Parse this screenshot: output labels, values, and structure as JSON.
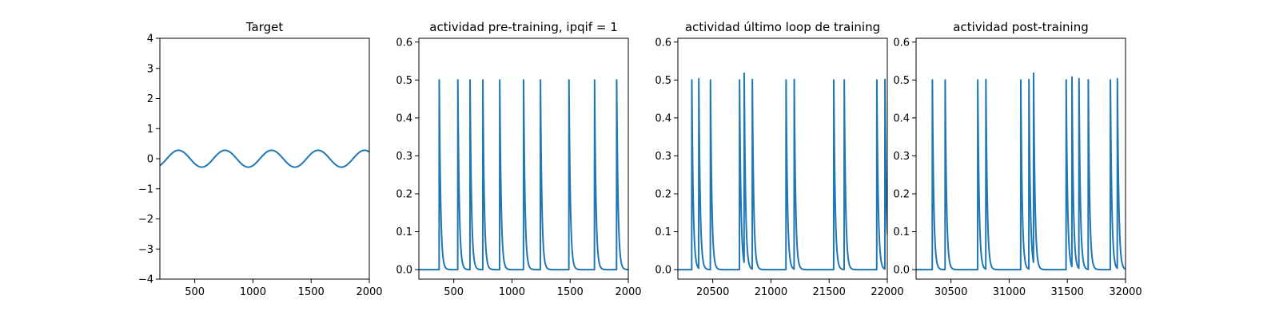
{
  "colors": {
    "series": "#1f77b4",
    "axis": "#000000",
    "background": "#ffffff"
  },
  "chart_data": [
    {
      "type": "line",
      "title": "Target",
      "xlabel": "",
      "ylabel": "",
      "xlim": [
        200,
        2000
      ],
      "ylim": [
        -4,
        4
      ],
      "xticks": [
        500,
        1000,
        1500,
        2000
      ],
      "xtick_labels": [
        "500",
        "1000",
        "1500",
        "2000"
      ],
      "yticks": [
        -4,
        -3,
        -2,
        -1,
        0,
        1,
        2,
        3,
        4
      ],
      "ytick_labels": [
        "−4",
        "−3",
        "−2",
        "−1",
        "0",
        "1",
        "2",
        "3",
        "4"
      ],
      "grid": false,
      "signal": {
        "kind": "sine",
        "amplitude": 0.28,
        "period": 400,
        "peak_x": 360,
        "x_start": 200,
        "x_end": 2000
      }
    },
    {
      "type": "line",
      "title": "actividad pre-training, ipqif = 1",
      "xlabel": "",
      "ylabel": "",
      "xlim": [
        200,
        2000
      ],
      "ylim": [
        -0.025,
        0.61
      ],
      "xticks": [
        500,
        1000,
        1500,
        2000
      ],
      "xtick_labels": [
        "500",
        "1000",
        "1500",
        "2000"
      ],
      "yticks": [
        0.0,
        0.1,
        0.2,
        0.3,
        0.4,
        0.5,
        0.6
      ],
      "ytick_labels": [
        "0.0",
        "0.1",
        "0.2",
        "0.3",
        "0.4",
        "0.5",
        "0.6"
      ],
      "grid": false,
      "signal": {
        "kind": "spikes",
        "x_start": 200,
        "x_end": 2000,
        "decay": 12,
        "peaks_x": [
          375,
          535,
          640,
          750,
          895,
          1100,
          1245,
          1490,
          1710,
          1900
        ]
      }
    },
    {
      "type": "line",
      "title": "actividad último loop de training",
      "xlabel": "",
      "ylabel": "",
      "xlim": [
        20200,
        22000
      ],
      "ylim": [
        -0.025,
        0.61
      ],
      "xticks": [
        20500,
        21000,
        21500,
        22000
      ],
      "xtick_labels": [
        "20500",
        "21000",
        "21500",
        "22000"
      ],
      "yticks": [
        0.0,
        0.1,
        0.2,
        0.3,
        0.4,
        0.5,
        0.6
      ],
      "ytick_labels": [
        "0.0",
        "0.1",
        "0.2",
        "0.3",
        "0.4",
        "0.5",
        "0.6"
      ],
      "grid": false,
      "signal": {
        "kind": "spikes",
        "x_start": 20200,
        "x_end": 22000,
        "decay": 12,
        "peaks_x": [
          20320,
          20380,
          20480,
          20730,
          20770,
          20840,
          21130,
          21200,
          21540,
          21630,
          21910,
          21980
        ]
      }
    },
    {
      "type": "line",
      "title": "actividad post-training",
      "xlabel": "",
      "ylabel": "",
      "xlim": [
        30200,
        32000
      ],
      "ylim": [
        -0.025,
        0.61
      ],
      "xticks": [
        30500,
        31000,
        31500,
        32000
      ],
      "xtick_labels": [
        "30500",
        "31000",
        "31500",
        "32000"
      ],
      "yticks": [
        0.0,
        0.1,
        0.2,
        0.3,
        0.4,
        0.5,
        0.6
      ],
      "ytick_labels": [
        "0.0",
        "0.1",
        "0.2",
        "0.3",
        "0.4",
        "0.5",
        "0.6"
      ],
      "grid": false,
      "signal": {
        "kind": "spikes",
        "x_start": 30200,
        "x_end": 32000,
        "decay": 12,
        "peaks_x": [
          30340,
          30450,
          30730,
          30800,
          31100,
          31170,
          31210,
          31490,
          31540,
          31600,
          31680,
          31870,
          31930
        ]
      }
    }
  ]
}
